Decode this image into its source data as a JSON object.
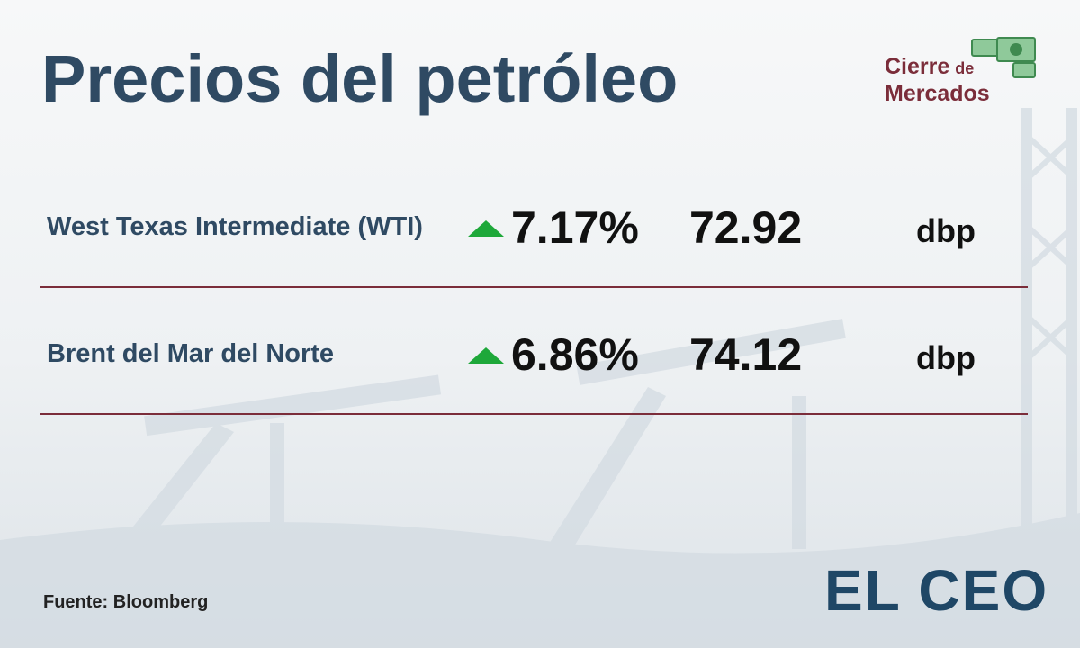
{
  "header": {
    "title": "Precios del petróleo",
    "badge": {
      "line1": "Cierre",
      "connector": "de",
      "line2": "Mercados"
    }
  },
  "table": {
    "rows": [
      {
        "name": "West Texas Intermediate (WTI)",
        "change": "7.17%",
        "price": "72.92",
        "unit": "dbp"
      },
      {
        "name": "Brent del Mar del Norte",
        "change": "6.86%",
        "price": "74.12",
        "unit": "dbp"
      }
    ]
  },
  "footer": {
    "source": "Fuente: Bloomberg",
    "logo": "EL CEO"
  }
}
